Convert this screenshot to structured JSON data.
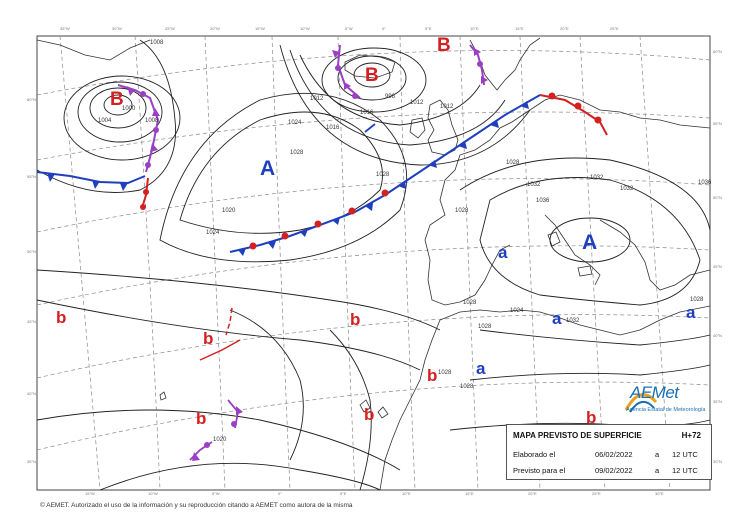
{
  "colors": {
    "low": "#d42020",
    "high": "#1f3fbf",
    "cold_front": "#1f3fbf",
    "warm_front": "#d42020",
    "occluded": "#9b3fc4",
    "isobar": "#222222",
    "grid": "#8a8a8a",
    "coast": "#333333",
    "logo": "#1a6fb3"
  },
  "legend": {
    "title": "MAPA PREVISTO DE SUPERFICIE",
    "horizon": "H+72",
    "rows": [
      {
        "label": "Elaborado el",
        "date": "06/02/2022",
        "at": "a",
        "time": "12 UTC"
      },
      {
        "label": "Previsto para el",
        "date": "09/02/2022",
        "at": "a",
        "time": "12 UTC"
      }
    ]
  },
  "logo": {
    "text": "AEMet",
    "subtitle": "Agencia Estatal de Meteorología"
  },
  "copyright": "© AEMET. Autorizado el uso de la información y su reproducción citando a AEMET como autora de la misma",
  "pressure_centers": [
    {
      "id": "low-greenland",
      "symbol": "B",
      "kind": "low"
    },
    {
      "id": "low-iceland",
      "symbol": "B",
      "kind": "low"
    },
    {
      "id": "low-norway",
      "symbol": "B",
      "kind": "low"
    },
    {
      "id": "high-atlantic",
      "symbol": "A",
      "kind": "high"
    },
    {
      "id": "high-mediterranean",
      "symbol": "A",
      "kind": "high"
    },
    {
      "id": "high-iberia",
      "symbol": "a",
      "kind": "high"
    },
    {
      "id": "high-nafrica",
      "symbol": "a",
      "kind": "high"
    },
    {
      "id": "high-morocco",
      "symbol": "a",
      "kind": "high"
    },
    {
      "id": "high-east",
      "symbol": "a",
      "kind": "high"
    },
    {
      "id": "low-west-atlantic",
      "symbol": "b",
      "kind": "low"
    },
    {
      "id": "low-mid-atlantic",
      "symbol": "b",
      "kind": "low"
    },
    {
      "id": "low-central-atlantic",
      "symbol": "b",
      "kind": "low"
    },
    {
      "id": "low-canaries-west",
      "symbol": "b",
      "kind": "low"
    },
    {
      "id": "low-canaries",
      "symbol": "b",
      "kind": "low"
    },
    {
      "id": "low-morocco-coast",
      "symbol": "b",
      "kind": "low"
    },
    {
      "id": "low-sahara",
      "symbol": "b",
      "kind": "low"
    }
  ],
  "isobar_labels": [
    "1000",
    "1004",
    "1008",
    "1012",
    "1016",
    "1020",
    "1024",
    "1028",
    "1032",
    "1036",
    "1028",
    "1028",
    "1028",
    "1024",
    "1028",
    "1032",
    "1028",
    "1020",
    "1032",
    "1028",
    "1028",
    "1012",
    "996",
    "1016",
    "1024",
    "1028",
    "1032",
    "1036",
    "1012",
    "1008"
  ],
  "grid_ticks": {
    "top": [
      "35°W",
      "30°W",
      "25°W",
      "20°W",
      "15°W",
      "10°W",
      "5°W",
      "0°",
      "5°E",
      "10°E",
      "15°E",
      "20°E",
      "25°E"
    ],
    "bottom": [
      "15°W",
      "10°W",
      "5°W",
      "0°",
      "5°E",
      "10°E",
      "15°E",
      "20°E",
      "25°E",
      "30°E"
    ],
    "left": [
      "60°N",
      "55°N",
      "50°N",
      "45°N",
      "40°N",
      "35°N"
    ],
    "right": [
      "60°N",
      "55°N",
      "50°N",
      "45°N",
      "40°N",
      "35°N",
      "30°N"
    ]
  }
}
